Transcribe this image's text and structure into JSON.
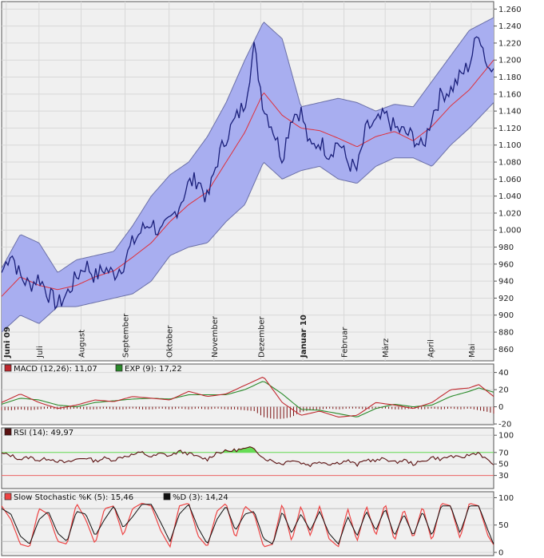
{
  "colors": {
    "price": "#1a1f7a",
    "average": "#e0303a",
    "band_fill": "#a8aef0",
    "band_edge": "#6b70a8",
    "macd": "#c0282e",
    "exp": "#2a8a2a",
    "histogram": "#7a1010",
    "rsi": "#5a1010",
    "rsi_high": "#66dd55",
    "rsi_low": "#ee6666",
    "stoch_k": "#ee4444",
    "stoch_d": "#111111"
  },
  "chart_data": [
    {
      "type": "line",
      "panel": "price",
      "ylim": [
        850,
        1265
      ],
      "yticks": [
        860,
        880,
        900,
        920,
        940,
        960,
        980,
        1000,
        1020,
        1040,
        1060,
        1080,
        1100,
        1120,
        1140,
        1160,
        1180,
        1200,
        1220,
        1240,
        1260
      ],
      "ytick_labels": [
        "860",
        "880",
        "900",
        "920",
        "940",
        "960",
        "980",
        "1.000",
        "1.020",
        "1.040",
        "1.060",
        "1.080",
        "1.100",
        "1.120",
        "1.140",
        "1.160",
        "1.180",
        "1.200",
        "1.220",
        "1.240",
        "1.260"
      ],
      "months": [
        {
          "label": "Juni 09",
          "pos": 0.05,
          "bold": true
        },
        {
          "label": "Juli",
          "pos": 0.4,
          "bold": false
        },
        {
          "label": "August",
          "pos": 0.85,
          "bold": false
        },
        {
          "label": "September",
          "pos": 1.32,
          "bold": false
        },
        {
          "label": "Oktober",
          "pos": 1.79,
          "bold": false
        },
        {
          "label": "November",
          "pos": 2.27,
          "bold": false
        },
        {
          "label": "Dezember",
          "pos": 2.77,
          "bold": false
        },
        {
          "label": "Januar 10",
          "pos": 3.22,
          "bold": true
        },
        {
          "label": "Februar",
          "pos": 3.66,
          "bold": false
        },
        {
          "label": "März",
          "pos": 4.1,
          "bold": false
        },
        {
          "label": "April",
          "pos": 4.58,
          "bold": false
        },
        {
          "label": "Mai",
          "pos": 5.02,
          "bold": false
        }
      ],
      "x_total": 5.26,
      "series": [
        {
          "role": "price",
          "t": [
            0,
            0.1,
            0.2,
            0.3,
            0.4,
            0.5,
            0.6,
            0.7,
            0.8,
            0.9,
            1,
            1.1,
            1.2,
            1.3,
            1.4,
            1.5,
            1.6,
            1.7,
            1.8,
            1.9,
            2,
            2.1,
            2.2,
            2.3,
            2.4,
            2.5,
            2.6,
            2.7,
            2.8,
            2.9,
            3,
            3.1,
            3.2,
            3.3,
            3.4,
            3.5,
            3.6,
            3.7,
            3.8,
            3.9,
            4,
            4.1,
            4.2,
            4.3,
            4.4,
            4.5,
            4.6,
            4.7,
            4.8,
            4.9,
            5,
            5.1,
            5.2,
            5.26
          ],
          "values": [
            950,
            975,
            945,
            935,
            945,
            925,
            912,
            925,
            945,
            960,
            945,
            955,
            948,
            960,
            985,
            1000,
            1010,
            995,
            1010,
            1030,
            1055,
            1060,
            1035,
            1080,
            1110,
            1130,
            1150,
            1215,
            1145,
            1120,
            1085,
            1135,
            1140,
            1095,
            1105,
            1090,
            1105,
            1080,
            1070,
            1120,
            1125,
            1135,
            1120,
            1115,
            1110,
            1095,
            1135,
            1160,
            1165,
            1180,
            1195,
            1235,
            1190,
            1190
          ]
        },
        {
          "role": "average",
          "t": [
            0,
            0.2,
            0.4,
            0.6,
            0.8,
            1,
            1.2,
            1.4,
            1.6,
            1.8,
            2,
            2.2,
            2.4,
            2.6,
            2.8,
            3,
            3.2,
            3.4,
            3.6,
            3.8,
            4,
            4.2,
            4.4,
            4.6,
            4.8,
            5,
            5.26
          ],
          "values": [
            922,
            945,
            935,
            930,
            935,
            945,
            952,
            968,
            985,
            1010,
            1030,
            1045,
            1080,
            1115,
            1162,
            1135,
            1120,
            1117,
            1108,
            1098,
            1110,
            1116,
            1105,
            1122,
            1146,
            1165,
            1200
          ]
        },
        {
          "role": "upper",
          "t": [
            0,
            0.2,
            0.4,
            0.6,
            0.8,
            1,
            1.2,
            1.4,
            1.6,
            1.8,
            2,
            2.2,
            2.4,
            2.6,
            2.8,
            3,
            3.2,
            3.4,
            3.6,
            3.8,
            4,
            4.2,
            4.4,
            4.6,
            4.8,
            5,
            5.26
          ],
          "values": [
            955,
            995,
            985,
            950,
            965,
            970,
            975,
            1005,
            1040,
            1065,
            1080,
            1110,
            1150,
            1200,
            1245,
            1225,
            1145,
            1150,
            1155,
            1150,
            1140,
            1148,
            1145,
            1175,
            1205,
            1235,
            1250
          ]
        },
        {
          "role": "lower",
          "t": [
            0,
            0.2,
            0.4,
            0.6,
            0.8,
            1,
            1.2,
            1.4,
            1.6,
            1.8,
            2,
            2.2,
            2.4,
            2.6,
            2.8,
            3,
            3.2,
            3.4,
            3.6,
            3.8,
            4,
            4.2,
            4.4,
            4.6,
            4.8,
            5,
            5.26
          ],
          "values": [
            880,
            900,
            890,
            910,
            910,
            915,
            920,
            925,
            940,
            970,
            980,
            985,
            1010,
            1030,
            1080,
            1060,
            1070,
            1075,
            1060,
            1055,
            1075,
            1085,
            1085,
            1075,
            1100,
            1120,
            1150
          ]
        }
      ]
    },
    {
      "type": "line",
      "panel": "macd",
      "legend": [
        {
          "label": "MACD (12,26): 11,07",
          "color_key": "macd"
        },
        {
          "label": "EXP (9): 17,22",
          "color_key": "exp"
        }
      ],
      "ylim": [
        -19,
        48
      ],
      "yticks": [
        -20,
        0,
        20,
        40
      ],
      "ytick_labels": [
        "-20",
        "0",
        "20",
        "40"
      ],
      "x_total": 5.26,
      "series": [
        {
          "role": "macd",
          "t": [
            0,
            0.2,
            0.4,
            0.6,
            0.8,
            1,
            1.2,
            1.4,
            1.6,
            1.8,
            2,
            2.2,
            2.4,
            2.6,
            2.8,
            3,
            3.2,
            3.4,
            3.6,
            3.8,
            4,
            4.2,
            4.4,
            4.6,
            4.8,
            5,
            5.1,
            5.26
          ],
          "values": [
            5,
            15,
            5,
            -2,
            2,
            8,
            6,
            12,
            10,
            8,
            18,
            12,
            15,
            25,
            35,
            5,
            -10,
            -5,
            -12,
            -10,
            5,
            2,
            -2,
            5,
            20,
            22,
            26,
            12
          ]
        },
        {
          "role": "exp",
          "t": [
            0,
            0.2,
            0.4,
            0.6,
            0.8,
            1,
            1.2,
            1.4,
            1.6,
            1.8,
            2,
            2.2,
            2.4,
            2.6,
            2.8,
            3,
            3.2,
            3.4,
            3.6,
            3.8,
            4,
            4.2,
            4.4,
            4.6,
            4.8,
            5,
            5.1,
            5.26
          ],
          "values": [
            3,
            10,
            8,
            2,
            0,
            5,
            7,
            9,
            10,
            9,
            14,
            14,
            14,
            20,
            30,
            15,
            -3,
            -4,
            -8,
            -12,
            -2,
            3,
            0,
            2,
            12,
            18,
            22,
            17
          ]
        }
      ],
      "histogram": {
        "t": [
          0,
          0.1,
          0.2,
          0.3,
          0.4,
          0.5,
          0.6,
          0.7,
          0.8,
          0.9,
          1,
          1.1,
          1.2,
          1.3,
          1.4,
          1.5,
          1.6,
          1.7,
          1.8,
          1.9,
          2,
          2.1,
          2.2,
          2.3,
          2.4,
          2.5,
          2.6,
          2.7,
          2.8,
          2.9,
          3,
          3.1,
          3.2,
          3.3,
          3.4,
          3.5,
          3.6,
          3.7,
          3.8,
          3.9,
          4,
          4.1,
          4.2,
          4.3,
          4.4,
          4.5,
          4.6,
          4.7,
          4.8,
          4.9,
          5,
          5.1,
          5.2,
          5.26
        ],
        "values": [
          -4,
          -4,
          -3,
          -4,
          -3,
          -2,
          -3,
          -3,
          -2,
          -3,
          -3,
          -2,
          -3,
          -3,
          -2,
          -3,
          -3,
          -2,
          -3,
          -2,
          -3,
          -2,
          -3,
          -2,
          -3,
          -3,
          -4,
          -5,
          -12,
          -14,
          -14,
          -12,
          -6,
          -4,
          -3,
          -2,
          -3,
          -2,
          -2,
          -3,
          -2,
          -2,
          -3,
          -3,
          -2,
          -3,
          -2,
          -3,
          -2,
          -3,
          -2,
          -4,
          -6,
          -8
        ]
      }
    },
    {
      "type": "line",
      "panel": "rsi",
      "legend": [
        {
          "label": "RSI (14): 49,97",
          "color_key": "rsi"
        }
      ],
      "ylim": [
        10,
        110
      ],
      "yticks": [
        30,
        50,
        70,
        100
      ],
      "ytick_labels": [
        "30",
        "50",
        "70",
        "100"
      ],
      "x_total": 5.26,
      "series": [
        {
          "role": "rsi",
          "t": [
            0,
            0.1,
            0.2,
            0.3,
            0.4,
            0.5,
            0.6,
            0.7,
            0.8,
            0.9,
            1,
            1.1,
            1.2,
            1.3,
            1.4,
            1.5,
            1.6,
            1.7,
            1.8,
            1.9,
            2,
            2.1,
            2.2,
            2.3,
            2.4,
            2.5,
            2.6,
            2.7,
            2.8,
            2.9,
            3,
            3.1,
            3.2,
            3.3,
            3.4,
            3.5,
            3.6,
            3.7,
            3.8,
            3.9,
            4,
            4.1,
            4.2,
            4.3,
            4.4,
            4.5,
            4.6,
            4.7,
            4.8,
            4.9,
            5,
            5.1,
            5.2,
            5.26
          ],
          "values": [
            68,
            65,
            58,
            62,
            56,
            60,
            55,
            52,
            58,
            61,
            55,
            60,
            57,
            63,
            66,
            70,
            62,
            68,
            64,
            72,
            68,
            62,
            58,
            70,
            72,
            74,
            76,
            78,
            60,
            55,
            50,
            58,
            52,
            48,
            55,
            50,
            52,
            56,
            48,
            58,
            55,
            60,
            52,
            57,
            50,
            54,
            62,
            58,
            64,
            60,
            66,
            70,
            55,
            50
          ]
        }
      ]
    },
    {
      "type": "line",
      "panel": "stochastic",
      "legend": [
        {
          "label": "Slow Stochastic %K (5): 15,46",
          "color_key": "stoch_k"
        },
        {
          "label": "%D (3): 14,24",
          "color_key": "stoch_d"
        }
      ],
      "ylim": [
        0,
        105
      ],
      "yticks": [
        0,
        50,
        100
      ],
      "ytick_labels": [
        "0",
        "50",
        "100"
      ],
      "x_total": 5.26,
      "series": [
        {
          "role": "k",
          "t": [
            0,
            0.1,
            0.2,
            0.3,
            0.4,
            0.5,
            0.6,
            0.7,
            0.8,
            0.9,
            1,
            1.1,
            1.2,
            1.3,
            1.4,
            1.5,
            1.6,
            1.7,
            1.8,
            1.9,
            2,
            2.1,
            2.2,
            2.3,
            2.4,
            2.5,
            2.6,
            2.7,
            2.8,
            2.9,
            3,
            3.1,
            3.2,
            3.3,
            3.4,
            3.5,
            3.6,
            3.7,
            3.8,
            3.9,
            4,
            4.1,
            4.2,
            4.3,
            4.4,
            4.5,
            4.6,
            4.7,
            4.8,
            4.9,
            5,
            5.1,
            5.2,
            5.26
          ],
          "values": [
            85,
            60,
            15,
            10,
            80,
            70,
            20,
            15,
            90,
            60,
            15,
            80,
            85,
            30,
            80,
            90,
            85,
            40,
            10,
            85,
            90,
            30,
            10,
            75,
            90,
            25,
            85,
            70,
            10,
            15,
            90,
            20,
            85,
            30,
            85,
            25,
            10,
            80,
            20,
            85,
            30,
            90,
            20,
            80,
            25,
            85,
            20,
            90,
            85,
            25,
            90,
            85,
            30,
            14
          ]
        },
        {
          "role": "d",
          "t": [
            0,
            0.1,
            0.2,
            0.3,
            0.4,
            0.5,
            0.6,
            0.7,
            0.8,
            0.9,
            1,
            1.1,
            1.2,
            1.3,
            1.4,
            1.5,
            1.6,
            1.7,
            1.8,
            1.9,
            2,
            2.1,
            2.2,
            2.3,
            2.4,
            2.5,
            2.6,
            2.7,
            2.8,
            2.9,
            3,
            3.1,
            3.2,
            3.3,
            3.4,
            3.5,
            3.6,
            3.7,
            3.8,
            3.9,
            4,
            4.1,
            4.2,
            4.3,
            4.4,
            4.5,
            4.6,
            4.7,
            4.8,
            4.9,
            5,
            5.1,
            5.2,
            5.26
          ],
          "values": [
            80,
            70,
            30,
            15,
            60,
            75,
            35,
            20,
            75,
            70,
            30,
            60,
            85,
            45,
            65,
            88,
            88,
            55,
            20,
            70,
            88,
            45,
            15,
            60,
            85,
            40,
            70,
            75,
            25,
            15,
            75,
            35,
            70,
            40,
            75,
            35,
            15,
            65,
            30,
            75,
            40,
            80,
            30,
            70,
            30,
            75,
            30,
            85,
            85,
            35,
            85,
            85,
            40,
            15
          ]
        }
      ]
    }
  ]
}
